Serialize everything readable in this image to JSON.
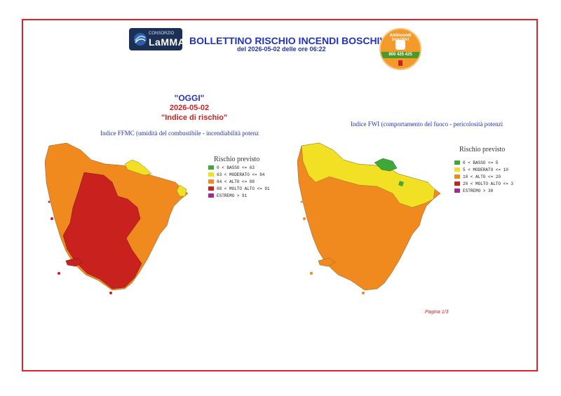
{
  "header": {
    "logo_top": "CONSORZIO",
    "logo_name": "LaMMA",
    "title": "BOLLETTINO RISCHIO INCENDI BOSCHIVI",
    "subtitle": "del 2026-05-02 delle ore 06:22",
    "badge_top": "Antincendi boschivi",
    "badge_number": "800 425 425"
  },
  "left": {
    "oggi": "\"OGGI\"",
    "date": "2026-05-02",
    "indice": "\"Indice di rischio\"",
    "caption": "Indice FFMC (umidità del combustibile - incendiabilità potenz",
    "legend_title": "Rischio previsto",
    "legend": [
      {
        "label": "0 < BASSO <= 63",
        "color": "#3ea83a"
      },
      {
        "label": "63 < MODERATO <= 84",
        "color": "#f2e024"
      },
      {
        "label": "84 < ALTO <= 88",
        "color": "#f08a1e"
      },
      {
        "label": "88 < MOLTO ALTO <= 91",
        "color": "#c8211e"
      },
      {
        "label": "ESTREMO > 91",
        "color": "#a12a9a"
      }
    ]
  },
  "right": {
    "caption": "Indice FWI (comportamento del fuoco - pericolosità potenzi",
    "legend_title": "Rischio previsto",
    "legend": [
      {
        "label": "0 < BASSO <= 5",
        "color": "#3ea83a"
      },
      {
        "label": "5 < MODERATO <= 10",
        "color": "#f2e024"
      },
      {
        "label": "10 < ALTO <= 20",
        "color": "#f08a1e"
      },
      {
        "label": "20 < MOLTO ALTO <= 3",
        "color": "#c8211e"
      },
      {
        "label": "ESTREMO > 30",
        "color": "#a12a9a"
      }
    ]
  },
  "footer": {
    "pagina": "Pagina 1/3"
  },
  "colors": {
    "frame": "#e0202a",
    "title_blue": "#2233bb",
    "low": "#3ea83a",
    "moderate": "#f2e024",
    "high": "#f08a1e",
    "very_high": "#c8211e",
    "extreme": "#a12a9a"
  }
}
